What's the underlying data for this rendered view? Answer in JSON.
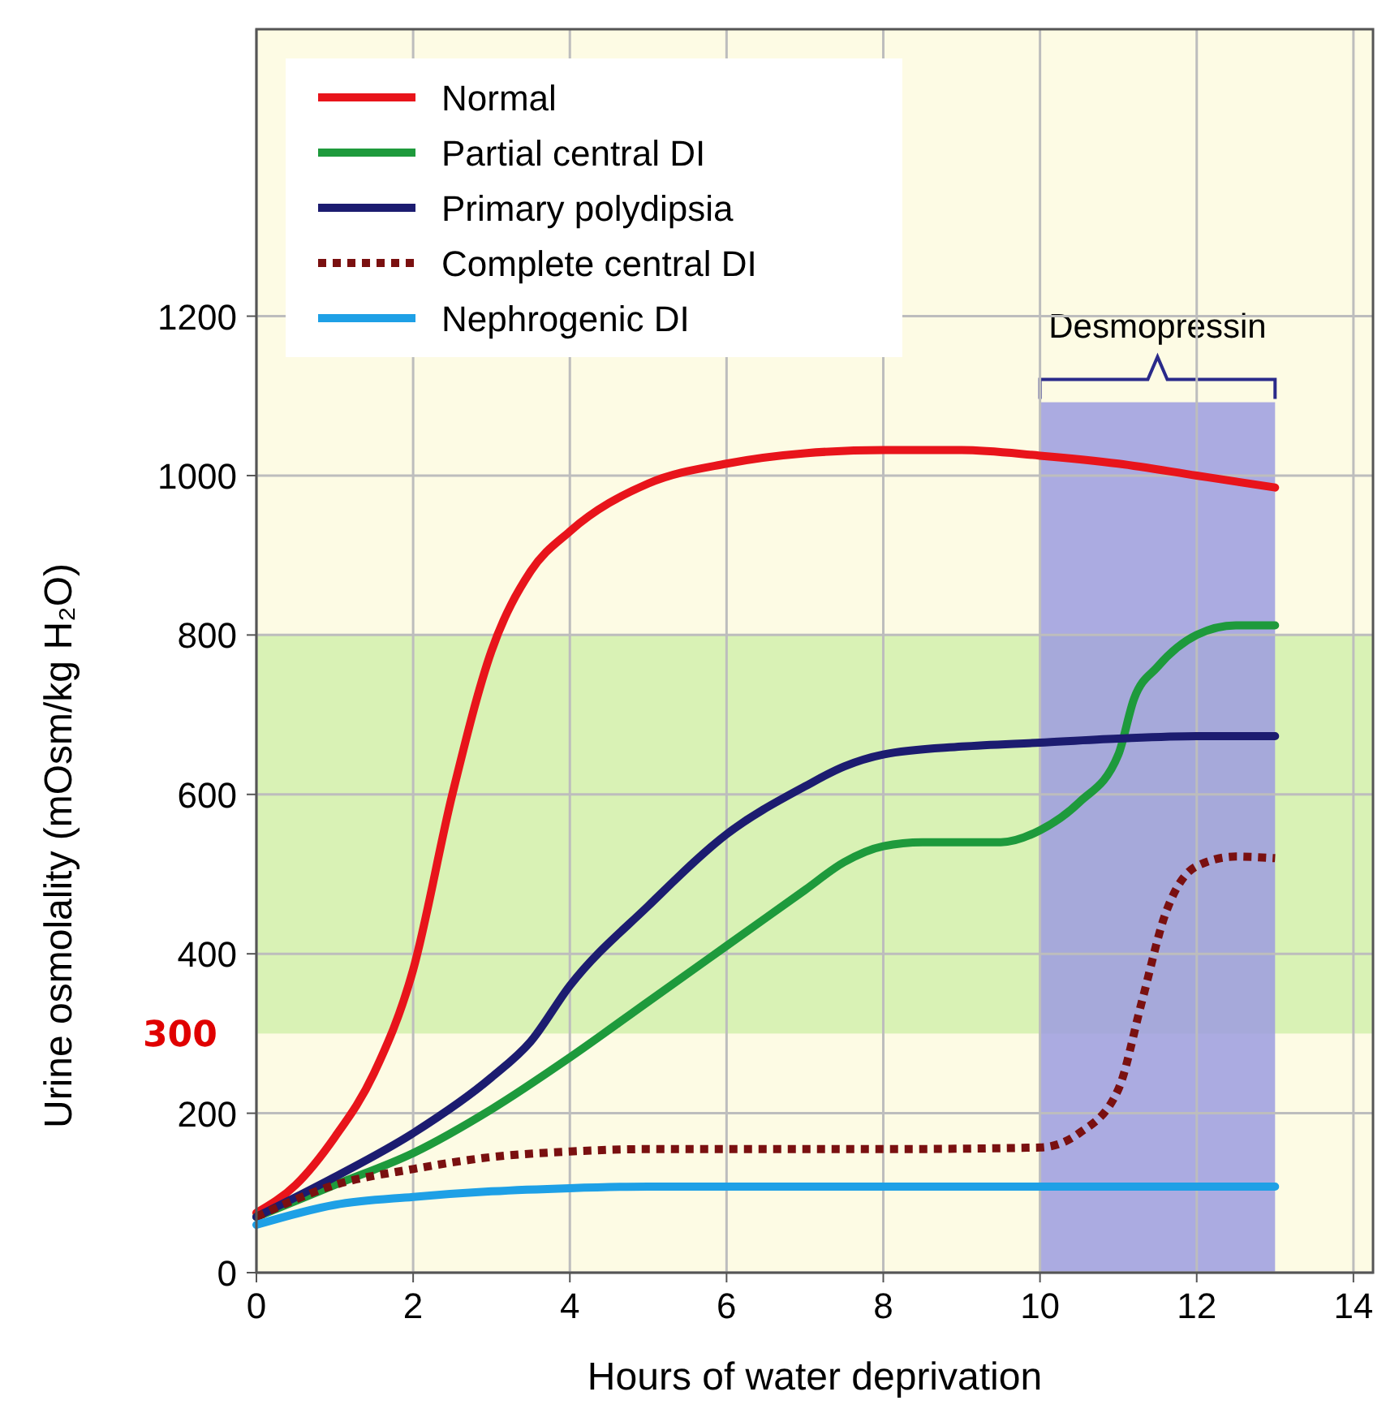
{
  "chart_data": {
    "type": "line",
    "xlabel": "Hours of water deprivation",
    "ylabel": "Urine osmolality (mOsm/kg H₂O)",
    "xlim": [
      0,
      14.25
    ],
    "ylim": [
      0,
      1560
    ],
    "xticks": [
      0,
      2,
      4,
      6,
      8,
      10,
      12,
      14
    ],
    "yticks": [
      0,
      200,
      400,
      600,
      800,
      1000,
      1200
    ],
    "grid": true,
    "legend": "top left",
    "line_style": "solid",
    "bands": [
      {
        "axis": "y",
        "from": 300,
        "to": 800,
        "label": null,
        "color": "#d9f2b5"
      },
      {
        "axis": "x",
        "from": 10,
        "to": 13,
        "label": "Desmopressin",
        "color": "#9c9ce0"
      }
    ],
    "annotations": [
      "300"
    ],
    "series": [
      {
        "name": "Normal",
        "color": "#e8141b",
        "x": [
          0,
          0.5,
          1,
          1.5,
          2,
          2.5,
          3,
          3.5,
          4,
          5,
          6,
          7,
          8,
          9,
          10,
          11,
          12,
          13
        ],
        "values": [
          75,
          110,
          170,
          250,
          380,
          600,
          780,
          880,
          930,
          990,
          1015,
          1028,
          1032,
          1032,
          1025,
          1015,
          1000,
          985
        ]
      },
      {
        "name": "Partial central DI",
        "color": "#1e9a3c",
        "x": [
          0,
          1,
          2,
          3,
          4,
          5,
          6,
          7,
          7.5,
          8,
          8.5,
          9,
          9.5,
          10,
          10.5,
          11,
          11.2,
          11.5,
          12,
          12.5,
          13
        ],
        "values": [
          70,
          110,
          150,
          205,
          270,
          340,
          410,
          480,
          515,
          535,
          540,
          540,
          540,
          555,
          590,
          650,
          720,
          760,
          800,
          812,
          812
        ]
      },
      {
        "name": "Primary polydipsia",
        "color": "#1c1c70",
        "x": [
          0,
          1,
          2,
          3,
          3.5,
          4,
          5,
          6,
          7,
          7.5,
          8,
          9,
          10,
          11,
          12,
          13
        ],
        "values": [
          70,
          120,
          175,
          245,
          290,
          360,
          460,
          550,
          610,
          635,
          650,
          660,
          665,
          670,
          673,
          673
        ]
      },
      {
        "name": "Complete central DI",
        "color": "#7a1010",
        "line_style": "dotted",
        "x": [
          0,
          1,
          2,
          3,
          4,
          5,
          6,
          8,
          10,
          10.5,
          11,
          11.3,
          11.6,
          12,
          12.5,
          13
        ],
        "values": [
          70,
          110,
          130,
          145,
          152,
          155,
          155,
          155,
          157,
          175,
          230,
          340,
          450,
          510,
          522,
          520
        ]
      },
      {
        "name": "Nephrogenic DI",
        "color": "#1ea0e6",
        "x": [
          0,
          1,
          2,
          3,
          4,
          5,
          6,
          8,
          10,
          13
        ],
        "values": [
          60,
          85,
          95,
          102,
          106,
          108,
          108,
          108,
          108,
          108
        ]
      }
    ]
  }
}
